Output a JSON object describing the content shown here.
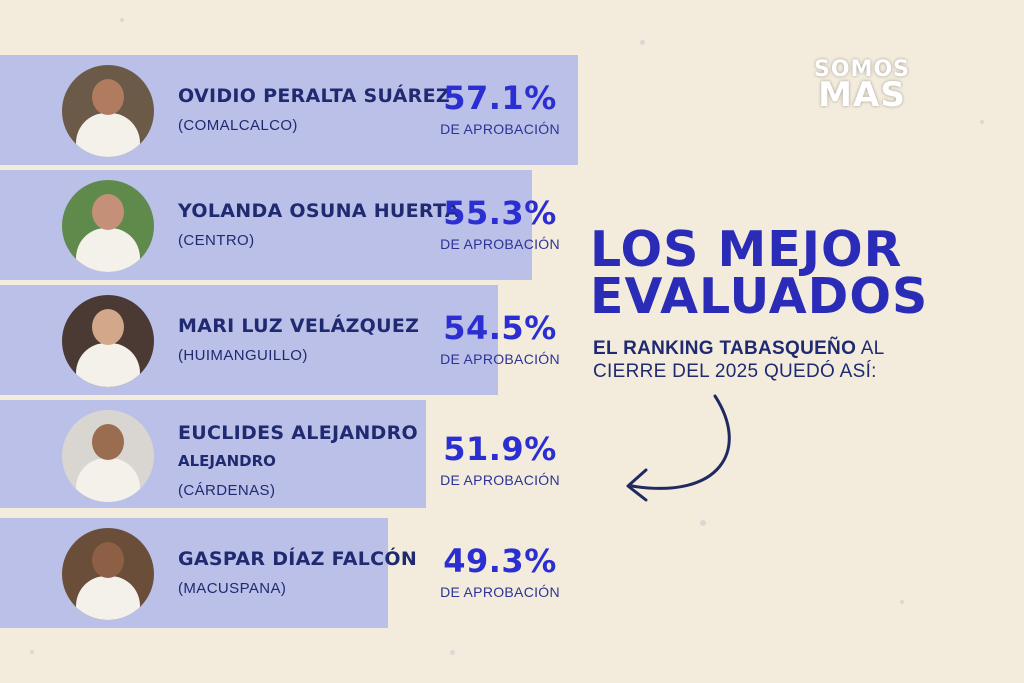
{
  "brand": {
    "line1": "SOMOS",
    "line2": "MAS"
  },
  "headline": {
    "line1": "LOS MEJOR",
    "line2": "EVALUADOS"
  },
  "subtitle": {
    "bold": "EL RANKING TABASQUEÑO",
    "rest1": " AL",
    "line2": "CIERRE DEL 2025 QUEDÓ ASÍ:"
  },
  "ranking": [
    {
      "name": "OVIDIO PERALTA SUÁREZ",
      "name2": "",
      "city": "(COMALCALCO)",
      "percent": "57.1%",
      "approval_label": "DE APROBACIÓN"
    },
    {
      "name": "YOLANDA OSUNA HUERTA",
      "name2": "",
      "city": "(CENTRO)",
      "percent": "55.3%",
      "approval_label": "DE APROBACIÓN"
    },
    {
      "name": "MARI LUZ VELÁZQUEZ",
      "name2": "",
      "city": "(HUIMANGUILLO)",
      "percent": "54.5%",
      "approval_label": "DE APROBACIÓN"
    },
    {
      "name": "EUCLIDES ALEJANDRO",
      "name2": "ALEJANDRO",
      "city": "(CÁRDENAS)",
      "percent": "51.9%",
      "approval_label": "DE APROBACIÓN"
    },
    {
      "name": "GASPAR DÍAZ FALCÓN",
      "name2": "",
      "city": "(MACUSPANA)",
      "percent": "49.3%",
      "approval_label": "DE APROBACIÓN"
    }
  ],
  "colors": {
    "background": "#f3ecdd",
    "card": "#aab4eb",
    "accent": "#2b2ed0",
    "text": "#1f2a70"
  }
}
